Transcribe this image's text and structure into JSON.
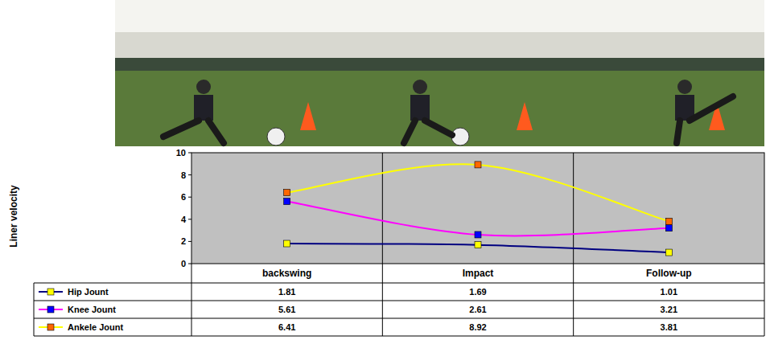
{
  "chart_data": {
    "type": "line",
    "y_label": "Liner velocity",
    "categories": [
      "backswing",
      "Impact",
      "Follow-up"
    ],
    "series": [
      {
        "name": "Hip Jount",
        "color": "#000080",
        "marker": "square",
        "values": [
          1.81,
          1.69,
          1.01
        ]
      },
      {
        "name": "Knee Jount",
        "color": "#ff00ff",
        "marker": "square",
        "values": [
          5.61,
          2.61,
          3.21
        ]
      },
      {
        "name": "Ankele Jount",
        "color": "#ffff00",
        "marker": "square",
        "values": [
          6.41,
          8.92,
          3.81
        ]
      }
    ],
    "ylim": [
      0,
      10
    ],
    "yticks": [
      0,
      2,
      4,
      6,
      8,
      10
    ],
    "grid": false,
    "legend": "bottom"
  }
}
